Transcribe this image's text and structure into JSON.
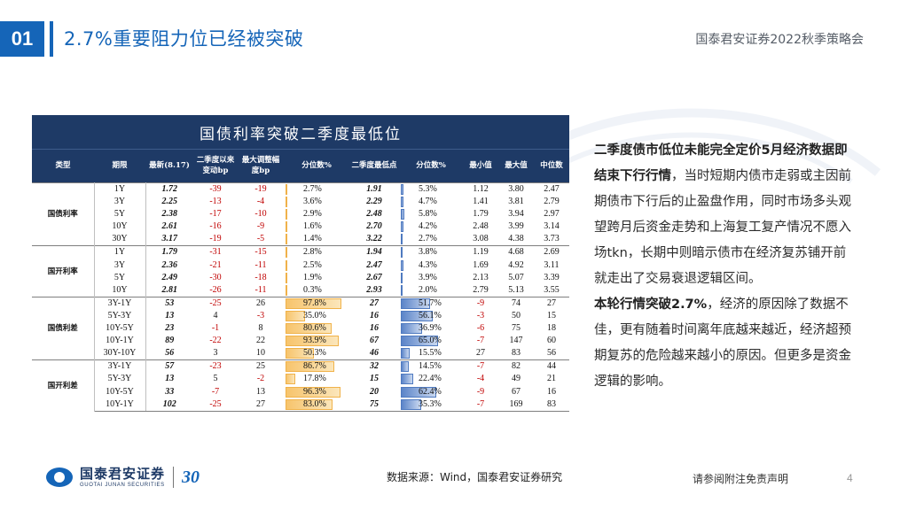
{
  "header": {
    "section_number": "01",
    "title": "2.7%重要阻力位已经被突破",
    "event_name": "国泰君安证券2022秋季策略会"
  },
  "table": {
    "title": "国债利率突破二季度最低位",
    "columns": [
      "类型",
      "期限",
      "最新(8.17)",
      "二季度以来变动bp",
      "最大调整幅度bp",
      "分位数%",
      "二季度最低点",
      "分位数%",
      "最小值",
      "最大值",
      "中位数"
    ],
    "groups": [
      {
        "category": "国债利率",
        "rows": [
          {
            "term": "1Y",
            "latest": "1.72",
            "chg_q2": "-39",
            "max_adj": "-19",
            "pct1": "2.7%",
            "pct1_v": 0.027,
            "q2_low": "1.91",
            "pct2": "5.3%",
            "pct2_v": 0.053,
            "min": "1.12",
            "max": "3.80",
            "median": "2.47"
          },
          {
            "term": "3Y",
            "latest": "2.25",
            "chg_q2": "-13",
            "max_adj": "-4",
            "pct1": "3.6%",
            "pct1_v": 0.036,
            "q2_low": "2.29",
            "pct2": "4.7%",
            "pct2_v": 0.047,
            "min": "1.41",
            "max": "3.81",
            "median": "2.79"
          },
          {
            "term": "5Y",
            "latest": "2.38",
            "chg_q2": "-17",
            "max_adj": "-10",
            "pct1": "2.9%",
            "pct1_v": 0.029,
            "q2_low": "2.48",
            "pct2": "5.8%",
            "pct2_v": 0.058,
            "min": "1.79",
            "max": "3.94",
            "median": "2.97"
          },
          {
            "term": "10Y",
            "latest": "2.61",
            "chg_q2": "-16",
            "max_adj": "-9",
            "pct1": "1.6%",
            "pct1_v": 0.016,
            "q2_low": "2.70",
            "pct2": "4.2%",
            "pct2_v": 0.042,
            "min": "2.48",
            "max": "3.99",
            "median": "3.14"
          },
          {
            "term": "30Y",
            "latest": "3.17",
            "chg_q2": "-19",
            "max_adj": "-5",
            "pct1": "1.4%",
            "pct1_v": 0.014,
            "q2_low": "3.22",
            "pct2": "2.7%",
            "pct2_v": 0.027,
            "min": "3.08",
            "max": "4.38",
            "median": "3.73"
          }
        ]
      },
      {
        "category": "国开利率",
        "rows": [
          {
            "term": "1Y",
            "latest": "1.79",
            "chg_q2": "-31",
            "max_adj": "-15",
            "pct1": "2.8%",
            "pct1_v": 0.028,
            "q2_low": "1.94",
            "pct2": "3.8%",
            "pct2_v": 0.038,
            "min": "1.19",
            "max": "4.68",
            "median": "2.69"
          },
          {
            "term": "3Y",
            "latest": "2.36",
            "chg_q2": "-21",
            "max_adj": "-11",
            "pct1": "2.5%",
            "pct1_v": 0.025,
            "q2_low": "2.47",
            "pct2": "4.3%",
            "pct2_v": 0.043,
            "min": "1.69",
            "max": "4.92",
            "median": "3.11"
          },
          {
            "term": "5Y",
            "latest": "2.49",
            "chg_q2": "-30",
            "max_adj": "-18",
            "pct1": "1.9%",
            "pct1_v": 0.019,
            "q2_low": "2.67",
            "pct2": "3.9%",
            "pct2_v": 0.039,
            "min": "2.13",
            "max": "5.07",
            "median": "3.39"
          },
          {
            "term": "10Y",
            "latest": "2.81",
            "chg_q2": "-26",
            "max_adj": "-11",
            "pct1": "0.3%",
            "pct1_v": 0.003,
            "q2_low": "2.93",
            "pct2": "2.0%",
            "pct2_v": 0.02,
            "min": "2.79",
            "max": "5.13",
            "median": "3.55"
          }
        ]
      },
      {
        "category": "国债利差",
        "rows": [
          {
            "term": "3Y-1Y",
            "latest": "53",
            "chg_q2": "-25",
            "max_adj": "26",
            "pct1": "97.8%",
            "pct1_v": 0.978,
            "q2_low": "27",
            "pct2": "51.7%",
            "pct2_v": 0.517,
            "min": "-9",
            "max": "74",
            "median": "27"
          },
          {
            "term": "5Y-3Y",
            "latest": "13",
            "chg_q2": "4",
            "max_adj": "-3",
            "pct1": "35.0%",
            "pct1_v": 0.35,
            "q2_low": "16",
            "pct2": "56.1%",
            "pct2_v": 0.561,
            "min": "-3",
            "max": "50",
            "median": "15"
          },
          {
            "term": "10Y-5Y",
            "latest": "23",
            "chg_q2": "-1",
            "max_adj": "8",
            "pct1": "80.6%",
            "pct1_v": 0.806,
            "q2_low": "16",
            "pct2": "36.9%",
            "pct2_v": 0.369,
            "min": "-6",
            "max": "75",
            "median": "18"
          },
          {
            "term": "10Y-1Y",
            "latest": "89",
            "chg_q2": "-22",
            "max_adj": "22",
            "pct1": "93.9%",
            "pct1_v": 0.939,
            "q2_low": "67",
            "pct2": "65.0%",
            "pct2_v": 0.65,
            "min": "-7",
            "max": "147",
            "median": "60"
          },
          {
            "term": "30Y-10Y",
            "latest": "56",
            "chg_q2": "3",
            "max_adj": "10",
            "pct1": "50.3%",
            "pct1_v": 0.503,
            "q2_low": "46",
            "pct2": "15.5%",
            "pct2_v": 0.155,
            "min": "27",
            "max": "83",
            "median": "56"
          }
        ]
      },
      {
        "category": "国开利差",
        "rows": [
          {
            "term": "3Y-1Y",
            "latest": "57",
            "chg_q2": "-23",
            "max_adj": "25",
            "pct1": "86.7%",
            "pct1_v": 0.867,
            "q2_low": "32",
            "pct2": "14.5%",
            "pct2_v": 0.145,
            "min": "-7",
            "max": "82",
            "median": "44"
          },
          {
            "term": "5Y-3Y",
            "latest": "13",
            "chg_q2": "5",
            "max_adj": "-2",
            "pct1": "17.8%",
            "pct1_v": 0.178,
            "q2_low": "15",
            "pct2": "22.4%",
            "pct2_v": 0.224,
            "min": "-4",
            "max": "49",
            "median": "21"
          },
          {
            "term": "10Y-5Y",
            "latest": "33",
            "chg_q2": "-7",
            "max_adj": "13",
            "pct1": "96.3%",
            "pct1_v": 0.963,
            "q2_low": "20",
            "pct2": "62.4%",
            "pct2_v": 0.624,
            "min": "-9",
            "max": "67",
            "median": "16"
          },
          {
            "term": "10Y-1Y",
            "latest": "102",
            "chg_q2": "-25",
            "max_adj": "27",
            "pct1": "83.0%",
            "pct1_v": 0.83,
            "q2_low": "75",
            "pct2": "35.3%",
            "pct2_v": 0.353,
            "min": "-7",
            "max": "169",
            "median": "83"
          }
        ]
      }
    ]
  },
  "commentary": {
    "p1_bold": "二季度债市低位未能完全定价5月经济数据即结束下行行情",
    "p1_rest": "，当时短期内债市走弱或主因前期债市下行后的止盈盘作用，同时市场多头观望跨月后资金走势和上海复工复产情况不愿入场tkn，长期中则暗示债市在经济复苏铺开前就走出了交易衰退逻辑区间。",
    "p2_bold": "本轮行情突破2.7%",
    "p2_rest": "，经济的原因除了数据不佳，更有随着时间离年底越来越近，经济超预期复苏的危险越来越小的原因。但更多是资金逻辑的影响。"
  },
  "footer": {
    "logo_cn": "国泰君安证券",
    "logo_en": "GUOTAI JUNAN SECURITIES",
    "logo_anniv": "30",
    "source": "数据来源：Wind，国泰君安证券研究",
    "disclaimer": "请参阅附注免责声明",
    "page_number": "4"
  },
  "colors": {
    "brand_blue": "#1565b8",
    "table_header": "#1e3a66",
    "negative_red": "#c00000",
    "bar_orange": "#f7c46c",
    "bar_blue": "#5b84c8"
  }
}
